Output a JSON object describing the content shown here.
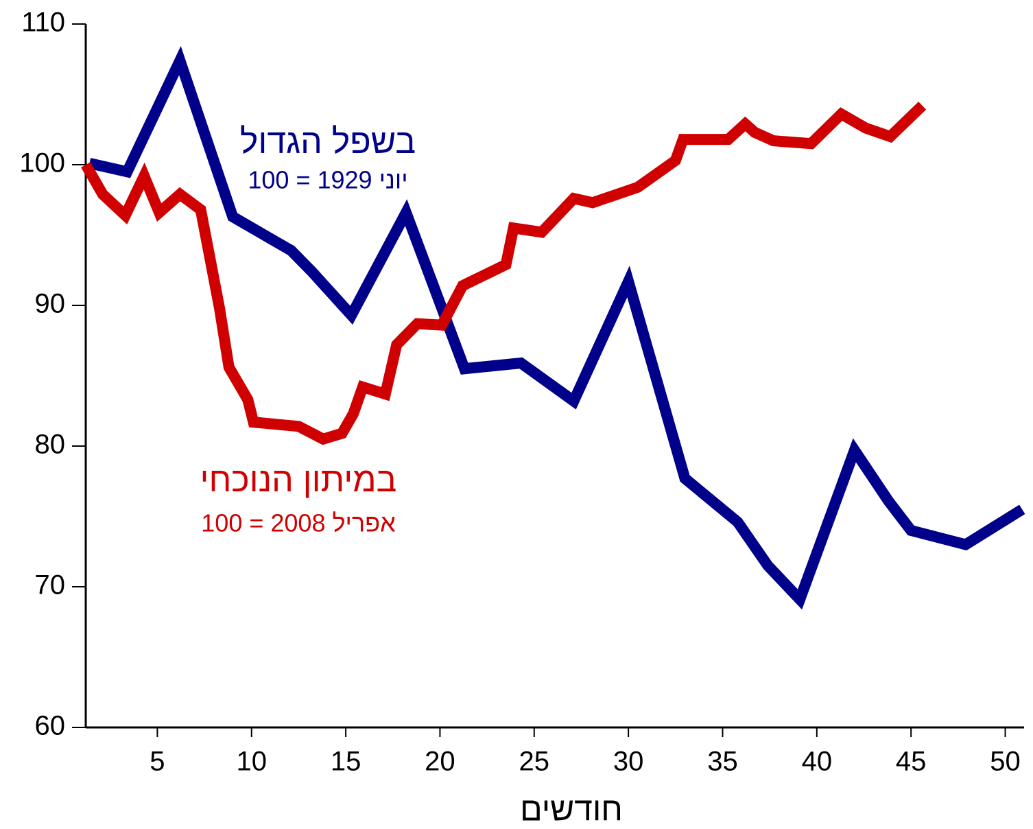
{
  "chart_data": {
    "type": "line",
    "xlabel": "חודשים",
    "xlim": [
      1.2,
      51
    ],
    "xticks": [
      5,
      10,
      15,
      20,
      25,
      30,
      35,
      40,
      45,
      50
    ],
    "ylim": [
      60,
      110
    ],
    "yticks": [
      60,
      70,
      80,
      90,
      100,
      110
    ],
    "series": [
      {
        "name": "בשפל הגדול",
        "subtitle": "יוני 1929 = 100",
        "color": "#00008b",
        "x": [
          1.4,
          3.4,
          6.2,
          9.0,
          12.1,
          13.2,
          15.3,
          18.2,
          21.3,
          24.3,
          27.1,
          30.0,
          33.0,
          35.8,
          37.4,
          39.1,
          42.0,
          43.8,
          45.0,
          47.9,
          50.9
        ],
        "values": [
          100.1,
          99.5,
          107.4,
          96.3,
          93.9,
          92.4,
          89.3,
          96.6,
          85.5,
          85.9,
          83.2,
          91.7,
          77.7,
          74.6,
          71.5,
          69.1,
          79.7,
          76.1,
          74.0,
          73.0,
          75.5
        ]
      },
      {
        "name": "במיתון הנוכחי",
        "subtitle": "אפריל 2008 = 100",
        "color": "#d00000",
        "x": [
          1.2,
          2.1,
          3.3,
          4.3,
          5.1,
          6.2,
          7.3,
          8.3,
          8.8,
          9.8,
          10.1,
          12.5,
          13.8,
          14.8,
          15.4,
          15.9,
          17.1,
          17.7,
          18.8,
          20.1,
          21.2,
          23.5,
          23.9,
          25.4,
          27.1,
          28.1,
          30.5,
          32.5,
          32.9,
          35.3,
          36.2,
          36.7,
          37.7,
          39.7,
          41.3,
          42.6,
          43.9,
          45.6
        ],
        "values": [
          100,
          97.9,
          96.4,
          99.2,
          96.6,
          97.9,
          96.8,
          89.8,
          85.6,
          83.3,
          81.7,
          81.4,
          80.5,
          80.9,
          82.3,
          84.2,
          83.7,
          87.2,
          88.7,
          88.6,
          91.4,
          92.9,
          95.5,
          95.2,
          97.6,
          97.3,
          98.4,
          100.3,
          101.8,
          101.8,
          102.9,
          102.3,
          101.7,
          101.5,
          103.6,
          102.6,
          102.0,
          104.2
        ]
      }
    ]
  }
}
